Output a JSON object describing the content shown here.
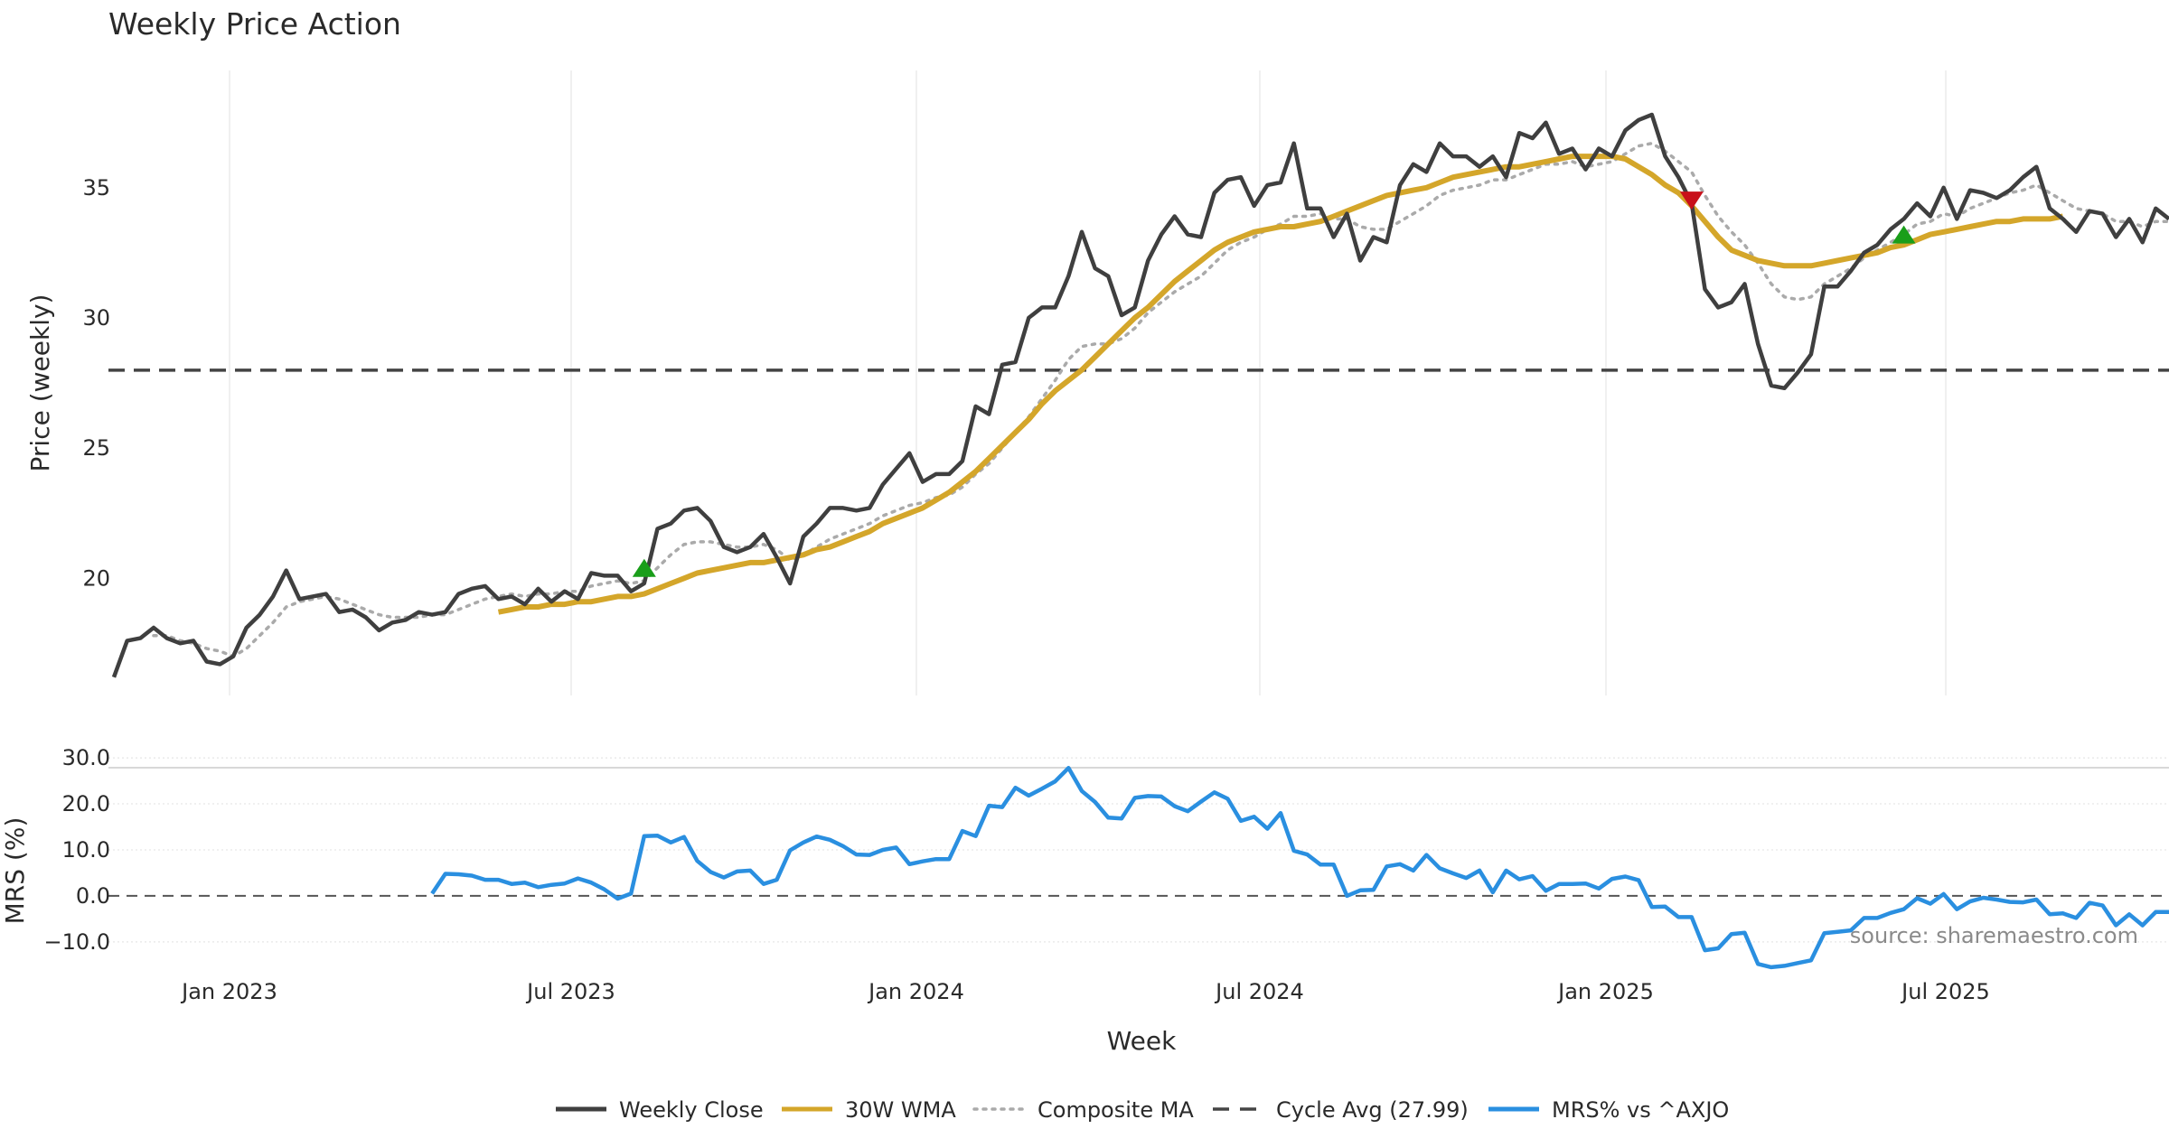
{
  "chart_data": {
    "type": "line",
    "title": "Weekly Price Action",
    "xlabel": "Week",
    "x_tick_labels": [
      "Jan 2023",
      "Jul 2023",
      "Jan 2024",
      "Jul 2024",
      "Jan 2025",
      "Jul 2025"
    ],
    "source_note": "source: sharemaestro.com",
    "colors": {
      "close": "#3f3f3f",
      "wma": "#d4a62a",
      "composite": "#aaaaaa",
      "cycle": "#444444",
      "mrs": "#2a8fe0",
      "buy": "#1a9e1a",
      "sell": "#c8101a",
      "grid": "#ececec"
    },
    "price_panel": {
      "ylabel": "Price (weekly)",
      "ylim": [
        15.5,
        39.5
      ],
      "yticks": [
        20,
        25,
        30,
        35
      ],
      "ytick_labels": [
        "20",
        "25",
        "30",
        "35"
      ],
      "cycle_avg": 27.99,
      "weekly_close": [
        16.2,
        17.6,
        17.7,
        18.1,
        17.7,
        17.5,
        17.6,
        16.8,
        16.7,
        17.0,
        18.1,
        18.6,
        19.3,
        20.3,
        19.2,
        19.3,
        19.4,
        18.7,
        18.8,
        18.5,
        18.0,
        18.3,
        18.4,
        18.7,
        18.6,
        18.7,
        19.4,
        19.6,
        19.7,
        19.2,
        19.3,
        19.0,
        19.6,
        19.1,
        19.5,
        19.2,
        20.2,
        20.1,
        20.1,
        19.5,
        19.8,
        21.9,
        22.1,
        22.6,
        22.7,
        22.2,
        21.2,
        21.0,
        21.2,
        21.7,
        20.8,
        19.8,
        21.6,
        22.1,
        22.7,
        22.7,
        22.6,
        22.7,
        23.6,
        24.2,
        24.8,
        23.7,
        24.0,
        24.0,
        24.5,
        26.6,
        26.3,
        28.2,
        28.3,
        30.0,
        30.4,
        30.4,
        31.6,
        33.3,
        31.9,
        31.6,
        30.1,
        30.4,
        32.2,
        33.2,
        33.9,
        33.2,
        33.1,
        34.8,
        35.3,
        35.4,
        34.3,
        35.1,
        35.2,
        36.7,
        34.2,
        34.2,
        33.1,
        34.0,
        32.2,
        33.1,
        32.9,
        35.1,
        35.9,
        35.6,
        36.7,
        36.2,
        36.2,
        35.8,
        36.2,
        35.4,
        37.1,
        36.9,
        37.5,
        36.3,
        36.5,
        35.7,
        36.5,
        36.2,
        37.2,
        37.6,
        37.8,
        36.2,
        35.4,
        34.4,
        31.1,
        30.4,
        30.6,
        31.3,
        29.0,
        27.4,
        27.3,
        27.9,
        28.6,
        31.2,
        31.2,
        31.8,
        32.5,
        32.8,
        33.4,
        33.8,
        34.4,
        33.9,
        35.0,
        33.8,
        34.9,
        34.8,
        34.6,
        34.9,
        35.4,
        35.8,
        34.2,
        33.8,
        33.3,
        34.1,
        34.0,
        33.1,
        33.8,
        32.9,
        34.2,
        33.8
      ],
      "wma_start_index": 29,
      "wma_30w": [
        18.7,
        18.8,
        18.9,
        18.9,
        19.0,
        19.0,
        19.1,
        19.1,
        19.2,
        19.3,
        19.3,
        19.4,
        19.6,
        19.8,
        20.0,
        20.2,
        20.3,
        20.4,
        20.5,
        20.6,
        20.6,
        20.7,
        20.8,
        20.9,
        21.1,
        21.2,
        21.4,
        21.6,
        21.8,
        22.1,
        22.3,
        22.5,
        22.7,
        23.0,
        23.3,
        23.7,
        24.1,
        24.6,
        25.1,
        25.6,
        26.1,
        26.7,
        27.2,
        27.6,
        28.0,
        28.5,
        29.0,
        29.5,
        30.0,
        30.4,
        30.9,
        31.4,
        31.8,
        32.2,
        32.6,
        32.9,
        33.1,
        33.3,
        33.4,
        33.5,
        33.5,
        33.6,
        33.7,
        33.9,
        34.1,
        34.3,
        34.5,
        34.7,
        34.8,
        34.9,
        35.0,
        35.2,
        35.4,
        35.5,
        35.6,
        35.7,
        35.8,
        35.8,
        35.9,
        36.0,
        36.1,
        36.2,
        36.2,
        36.2,
        36.2,
        36.1,
        35.8,
        35.5,
        35.1,
        34.8,
        34.3,
        33.7,
        33.1,
        32.6,
        32.4,
        32.2,
        32.1,
        32.0,
        32.0,
        32.0,
        32.1,
        32.2,
        32.3,
        32.4,
        32.5,
        32.7,
        32.8,
        33.0,
        33.2,
        33.3,
        33.4,
        33.5,
        33.6,
        33.7,
        33.7,
        33.8,
        33.8,
        33.8,
        33.9
      ],
      "composite_ma": [
        null,
        null,
        null,
        17.8,
        17.8,
        17.6,
        17.5,
        17.3,
        17.2,
        17.0,
        17.3,
        17.8,
        18.3,
        18.9,
        19.1,
        19.2,
        19.3,
        19.2,
        19.0,
        18.8,
        18.6,
        18.5,
        18.5,
        18.5,
        18.6,
        18.6,
        18.8,
        19.0,
        19.2,
        19.3,
        19.4,
        19.3,
        19.4,
        19.4,
        19.5,
        19.5,
        19.7,
        19.8,
        19.9,
        19.8,
        19.9,
        20.4,
        20.9,
        21.3,
        21.4,
        21.4,
        21.3,
        21.2,
        21.2,
        21.3,
        21.1,
        20.7,
        20.9,
        21.2,
        21.5,
        21.7,
        21.9,
        22.1,
        22.4,
        22.6,
        22.8,
        22.9,
        23.1,
        23.2,
        23.5,
        24.0,
        24.4,
        25.0,
        25.6,
        26.2,
        26.9,
        27.6,
        28.4,
        28.9,
        29.0,
        29.0,
        29.2,
        29.6,
        30.2,
        30.6,
        31.0,
        31.3,
        31.6,
        32.1,
        32.6,
        32.9,
        33.1,
        33.4,
        33.6,
        33.9,
        33.9,
        34.0,
        33.8,
        33.8,
        33.5,
        33.4,
        33.4,
        33.7,
        34.0,
        34.3,
        34.7,
        34.9,
        35.0,
        35.1,
        35.3,
        35.3,
        35.5,
        35.7,
        35.9,
        35.9,
        36.0,
        35.8,
        35.9,
        36.0,
        36.3,
        36.6,
        36.7,
        36.4,
        36.0,
        35.6,
        34.7,
        33.9,
        33.3,
        32.8,
        32.1,
        31.3,
        30.8,
        30.7,
        30.8,
        31.3,
        31.6,
        31.9,
        32.3,
        32.6,
        32.9,
        33.2,
        33.6,
        33.7,
        34.0,
        33.9,
        34.2,
        34.4,
        34.6,
        34.8,
        34.9,
        35.1,
        34.8,
        34.5,
        34.2,
        34.1,
        34.0,
        33.7,
        33.7,
        33.5,
        33.7,
        33.7
      ],
      "signals": [
        {
          "type": "buy",
          "index": 40,
          "price": 20.4
        },
        {
          "type": "sell",
          "index": 119,
          "price": 34.5
        },
        {
          "type": "buy",
          "index": 135,
          "price": 33.2
        }
      ]
    },
    "mrs_panel": {
      "ylabel": "MRS (%)",
      "ylim": [
        -16.5,
        31
      ],
      "yticks": [
        -10,
        0,
        10,
        20,
        30
      ],
      "ytick_labels": [
        "−10.0",
        "0.0",
        "10.0",
        "20.0",
        "30.0"
      ],
      "start_index": 24,
      "values": [
        0.5,
        4.8,
        4.7,
        4.4,
        3.5,
        3.5,
        2.6,
        2.9,
        1.9,
        2.4,
        2.7,
        3.8,
        2.9,
        1.4,
        -0.6,
        0.5,
        13.0,
        13.1,
        11.6,
        12.8,
        7.6,
        5.2,
        4.0,
        5.3,
        5.5,
        2.6,
        3.5,
        9.9,
        11.6,
        12.9,
        12.2,
        10.8,
        9.0,
        8.9,
        10.0,
        10.5,
        6.9,
        7.5,
        8.0,
        8.0,
        14.1,
        13.0,
        19.6,
        19.3,
        23.5,
        21.8,
        23.3,
        24.9,
        27.8,
        22.8,
        20.4,
        17.0,
        16.8,
        21.3,
        21.7,
        21.6,
        19.5,
        18.4,
        20.5,
        22.5,
        21.1,
        16.3,
        17.2,
        14.6,
        18.0,
        9.8,
        9.0,
        6.8,
        6.8,
        0.0,
        1.2,
        1.3,
        6.4,
        6.9,
        5.5,
        8.9,
        6.0,
        4.9,
        3.9,
        5.5,
        0.8,
        5.5,
        3.6,
        4.3,
        1.1,
        2.6,
        2.6,
        2.7,
        1.6,
        3.7,
        4.2,
        3.4,
        -2.4,
        -2.3,
        -4.6,
        -4.6,
        -11.8,
        -11.4,
        -8.3,
        -8.0,
        -14.8,
        -15.5,
        -15.2,
        -14.6,
        -14.0,
        -8.1,
        -7.8,
        -7.5,
        -4.8,
        -4.8,
        -3.7,
        -2.9,
        -0.5,
        -1.7,
        0.4,
        -2.9,
        -1.2,
        -0.4,
        -0.8,
        -1.3,
        -1.4,
        -0.8,
        -4.0,
        -3.8,
        -4.8,
        -1.5,
        -2.1,
        -6.4,
        -4.0,
        -6.4,
        -3.5,
        -3.5
      ]
    },
    "legend": [
      {
        "key": "close",
        "label": "Weekly Close",
        "style": "solid"
      },
      {
        "key": "wma",
        "label": "30W WMA",
        "style": "solid"
      },
      {
        "key": "composite",
        "label": "Composite MA",
        "style": "dotted"
      },
      {
        "key": "cycle",
        "label": "Cycle Avg (27.99)",
        "style": "dashed"
      },
      {
        "key": "mrs",
        "label": "MRS% vs ^AXJO",
        "style": "solid"
      }
    ]
  }
}
